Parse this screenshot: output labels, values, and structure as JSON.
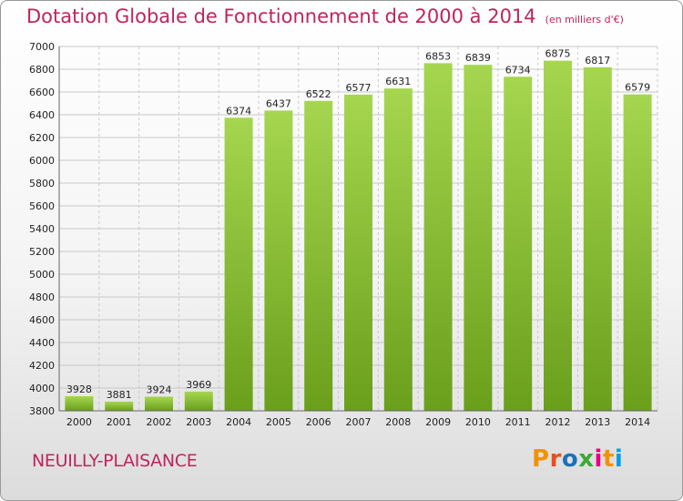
{
  "header": {
    "title": "Dotation Globale de Fonctionnement de 2000 à 2014",
    "subtitle": "(en milliers d'€)"
  },
  "footer": {
    "commune": "NEUILLY-PLAISANCE",
    "logo": "Proxiti",
    "logo_colors": [
      "#f39200",
      "#e94e1b",
      "#1d71b8",
      "#3aaa35",
      "#e6007e",
      "#f39200",
      "#009fe3"
    ]
  },
  "colors": {
    "bar_top": "#a6d64f",
    "bar_bottom": "#6a9f1c",
    "grid": "#c8c8c8",
    "accent": "#c0245c"
  },
  "chart_data": {
    "type": "bar",
    "categories": [
      "2000",
      "2001",
      "2002",
      "2003",
      "2004",
      "2005",
      "2006",
      "2007",
      "2008",
      "2009",
      "2010",
      "2011",
      "2012",
      "2013",
      "2014"
    ],
    "values": [
      3928,
      3881,
      3924,
      3969,
      6374,
      6437,
      6522,
      6577,
      6631,
      6853,
      6839,
      6734,
      6875,
      6817,
      6579
    ],
    "ylim": [
      3800,
      7000
    ],
    "yticks": [
      3800,
      4000,
      4200,
      4400,
      4600,
      4800,
      5000,
      5200,
      5400,
      5600,
      5800,
      6000,
      6200,
      6400,
      6600,
      6800,
      7000
    ],
    "grid": true
  }
}
